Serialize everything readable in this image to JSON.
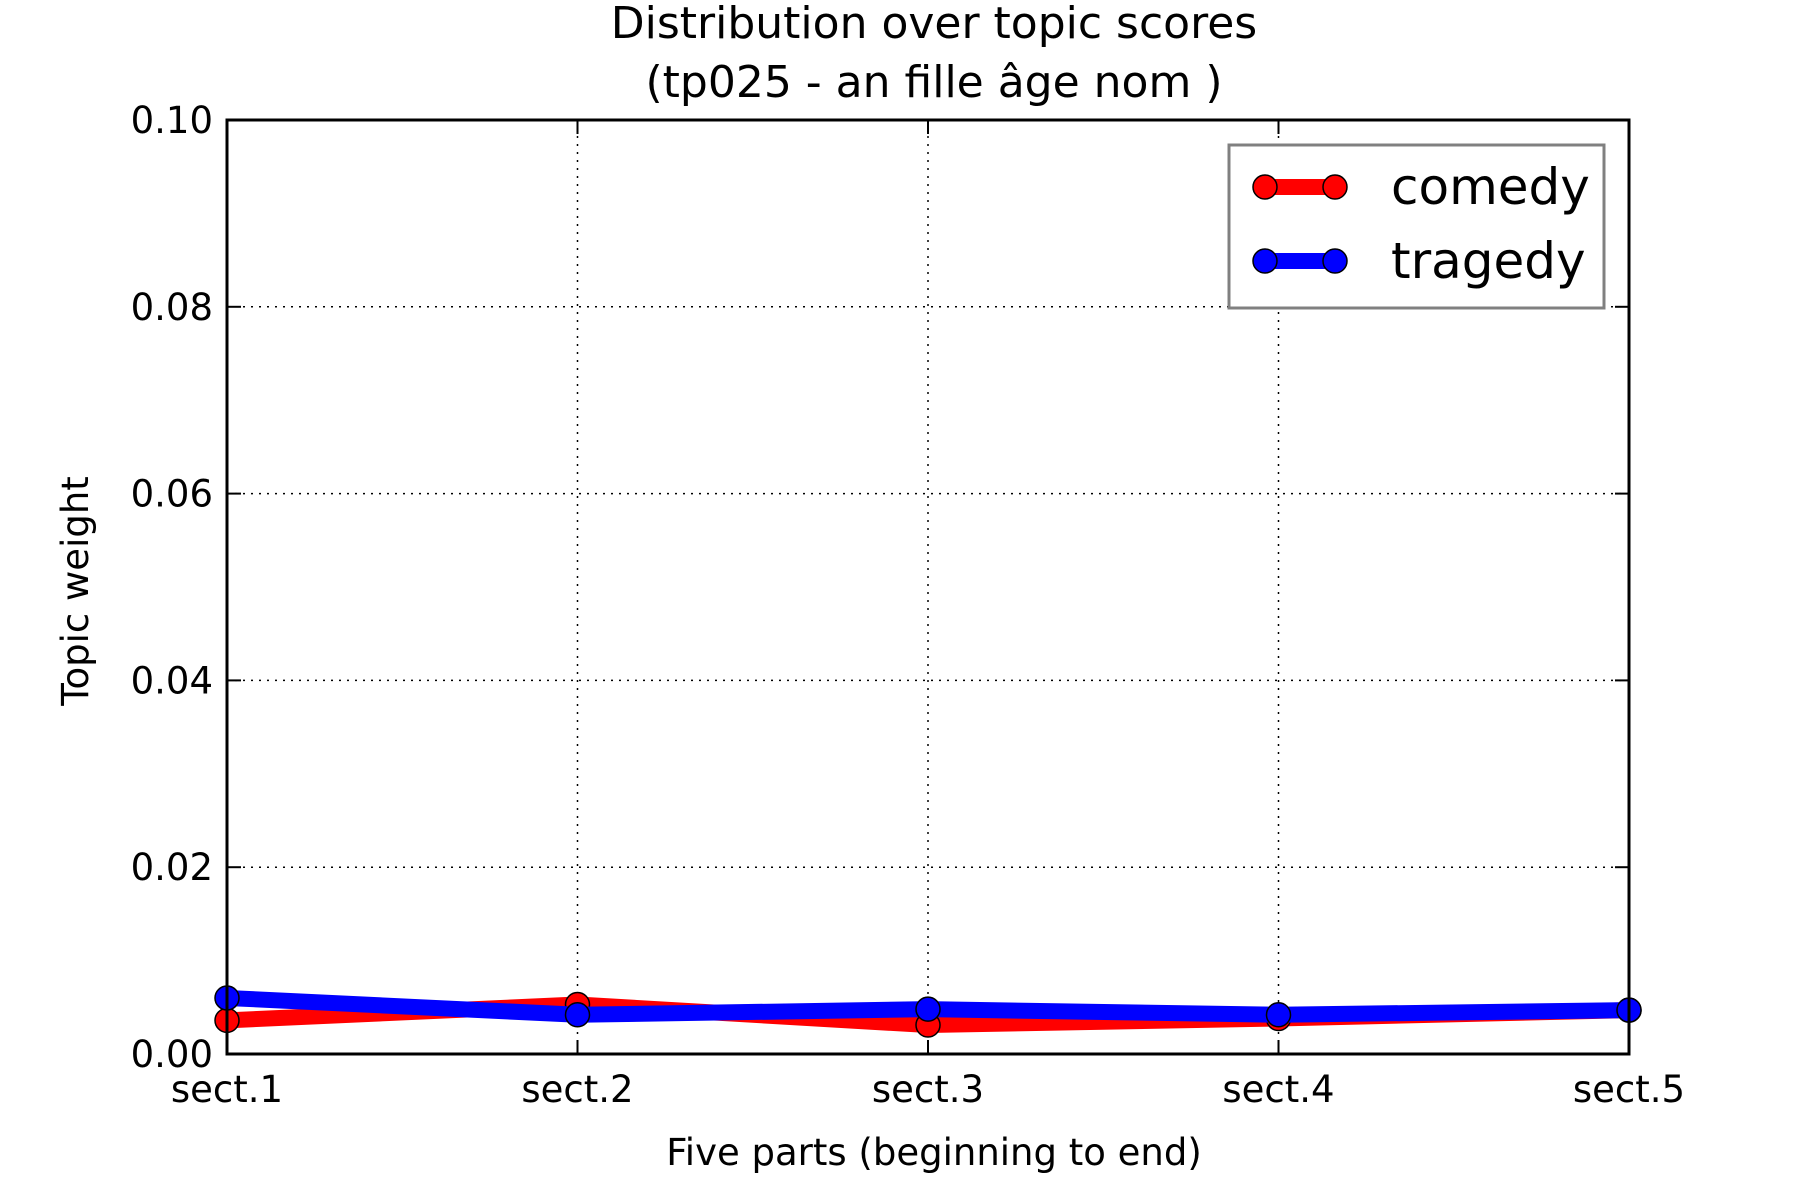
{
  "chart_data": {
    "type": "line",
    "title": "Distribution over topic scores",
    "subtitle": "(tp025 - an fille âge nom )",
    "xlabel": "Five parts (beginning to end)",
    "ylabel": "Topic weight",
    "categories": [
      "sect.1",
      "sect.2",
      "sect.3",
      "sect.4",
      "sect.5"
    ],
    "ylim": [
      0,
      0.1
    ],
    "yticks": [
      0.0,
      0.02,
      0.04,
      0.06,
      0.08,
      0.1
    ],
    "ytick_labels": [
      "0.00",
      "0.02",
      "0.04",
      "0.06",
      "0.08",
      "0.10"
    ],
    "grid": true,
    "legend_position": "top-right",
    "series": [
      {
        "name": "comedy",
        "color": "#ff0000",
        "values": [
          0.0036,
          0.0053,
          0.0031,
          0.0038,
          0.0047
        ]
      },
      {
        "name": "tragedy",
        "color": "#0000ff",
        "values": [
          0.006,
          0.0042,
          0.0048,
          0.0042,
          0.0047
        ]
      }
    ]
  }
}
